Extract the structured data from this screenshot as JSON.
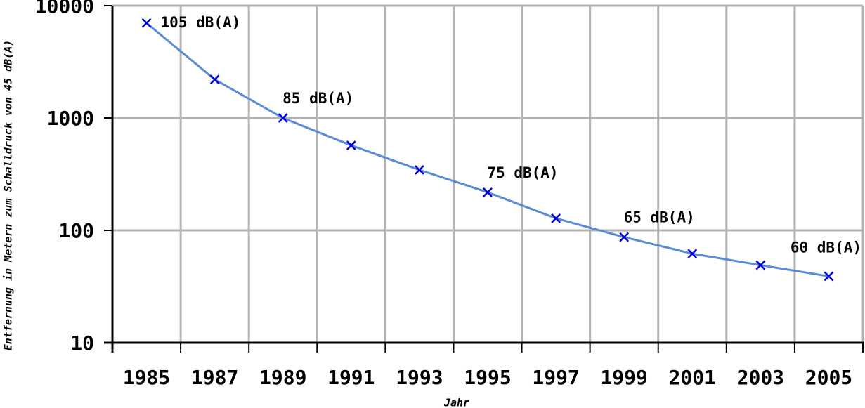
{
  "chart_data": {
    "type": "line",
    "x_label": "Jahr",
    "y_label": "Entfernung in Metern zum Schalldruck von 45 dB(A)",
    "categories": [
      "1985",
      "1987",
      "1989",
      "1991",
      "1993",
      "1995",
      "1997",
      "1999",
      "2001",
      "2003",
      "2005"
    ],
    "series": [
      {
        "color": "#5b8ad6",
        "marker_color": "#0000dd",
        "values": [
          7000,
          2200,
          1000,
          570,
          345,
          218,
          128,
          87,
          62,
          49,
          39
        ]
      }
    ],
    "annotations": [
      {
        "text": "105 dB(A)",
        "point": 0
      },
      {
        "text": "85 dB(A)",
        "point": 2
      },
      {
        "text": "75 dB(A)",
        "point": 5
      },
      {
        "text": "65 dB(A)",
        "point": 7
      },
      {
        "text": "60 dB(A)",
        "point": 10
      }
    ],
    "ylim": [
      10,
      10000
    ],
    "yticks": [
      10,
      100,
      1000,
      10000
    ],
    "log_y": true,
    "grid": true
  }
}
